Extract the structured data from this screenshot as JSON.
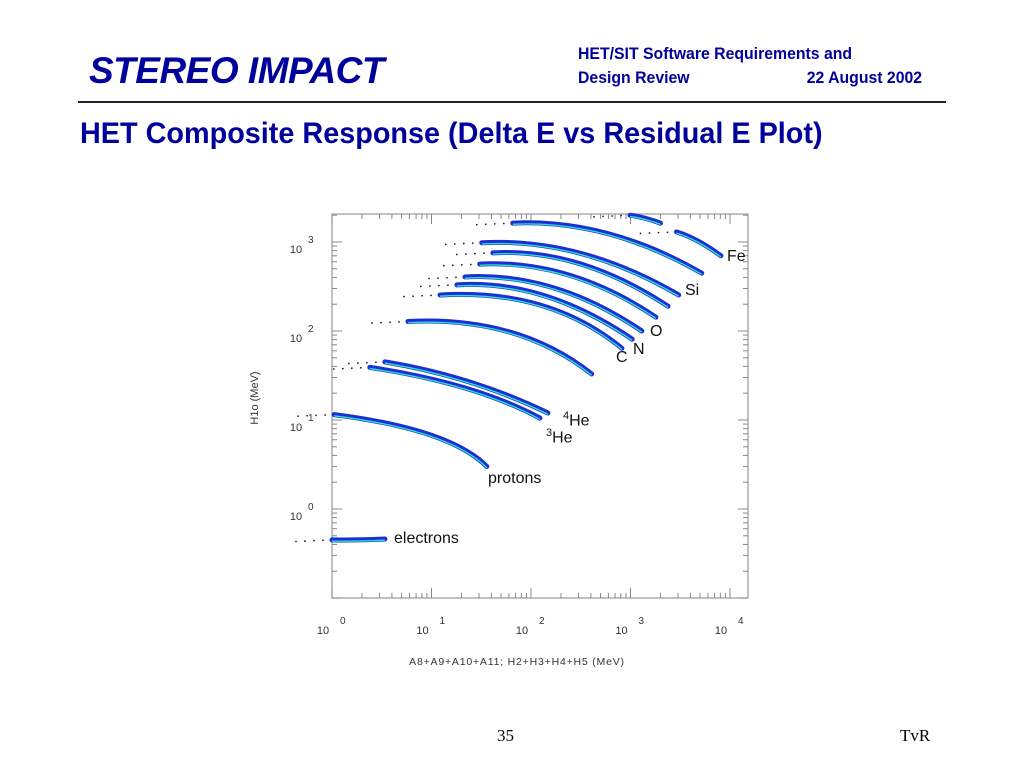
{
  "header": {
    "brand": "STEREO IMPACT",
    "line1": "HET/SIT Software Requirements and",
    "line2_left": "Design Review",
    "line2_right": "22 August 2002"
  },
  "title": "HET Composite Response (Delta E vs Residual E Plot)",
  "footer": {
    "page": "35",
    "author": "TvR"
  },
  "colors": {
    "navy": "#00009c",
    "track_outer": "#1a2fd6",
    "track_inner": "#2fe0c8"
  },
  "chart_data": {
    "type": "scatter",
    "title": "",
    "xlabel": "A8+A9+A10+A11; H2+H3+H4+H5 (MeV)",
    "ylabel": "H1o (MeV)",
    "xscale": "log",
    "yscale": "log",
    "xlim": [
      1,
      15000
    ],
    "ylim": [
      0.1,
      2500
    ],
    "x_ticks": [
      {
        "base": "10",
        "exp": "0"
      },
      {
        "base": "10",
        "exp": "1"
      },
      {
        "base": "10",
        "exp": "2"
      },
      {
        "base": "10",
        "exp": "3"
      },
      {
        "base": "10",
        "exp": "4"
      }
    ],
    "y_ticks": [
      {
        "base": "10",
        "exp": "0"
      },
      {
        "base": "10",
        "exp": "1"
      },
      {
        "base": "10",
        "exp": "2"
      },
      {
        "base": "10",
        "exp": "3"
      }
    ],
    "series": [
      {
        "name": "electrons",
        "label": "electrons",
        "points": [
          [
            1,
            0.45
          ],
          [
            1.8,
            0.45
          ],
          [
            3.4,
            0.46
          ]
        ]
      },
      {
        "name": "protons",
        "label": "protons",
        "points": [
          [
            1.05,
            11.5
          ],
          [
            9.7,
            6.8
          ],
          [
            36,
            3.0
          ]
        ]
      },
      {
        "name": "3He",
        "label_sup": "3",
        "label": "He",
        "points": [
          [
            2.4,
            39
          ],
          [
            21.7,
            22.9
          ],
          [
            123,
            10.5
          ]
        ]
      },
      {
        "name": "4He",
        "label_sup": "4",
        "label": "He",
        "points": [
          [
            3.4,
            45
          ],
          [
            24,
            26.8
          ],
          [
            148,
            12
          ]
        ]
      },
      {
        "name": "unlabeled-1",
        "points": [
          [
            5.8,
            128
          ],
          [
            60,
            98
          ],
          [
            407,
            32.9
          ]
        ]
      },
      {
        "name": "C",
        "label": "C",
        "points": [
          [
            12.2,
            254
          ],
          [
            123,
            196
          ],
          [
            820,
            64
          ]
        ]
      },
      {
        "name": "N",
        "label": "N",
        "points": [
          [
            18,
            330
          ],
          [
            135,
            250
          ],
          [
            1040,
            81
          ]
        ]
      },
      {
        "name": "O",
        "label": "O",
        "points": [
          [
            21.7,
            405
          ],
          [
            170,
            305
          ],
          [
            1300,
            100
          ]
        ]
      },
      {
        "name": "unlabeled-2",
        "points": [
          [
            30.6,
            565
          ],
          [
            240,
            425
          ],
          [
            1800,
            143
          ]
        ]
      },
      {
        "name": "unlabeled-3",
        "points": [
          [
            41.4,
            755
          ],
          [
            310,
            570
          ],
          [
            2380,
            190
          ]
        ]
      },
      {
        "name": "Si",
        "label": "Si",
        "points": [
          [
            32,
            980
          ],
          [
            310,
            750
          ],
          [
            3050,
            254
          ]
        ]
      },
      {
        "name": "unlabeled-4",
        "points": [
          [
            65.6,
            1630
          ],
          [
            580,
            1250
          ],
          [
            5200,
            447
          ]
        ]
      },
      {
        "name": "Fe",
        "label": "Fe",
        "points": [
          [
            2900,
            1300
          ],
          [
            4800,
            1020
          ],
          [
            8100,
            700
          ]
        ]
      },
      {
        "name": "unlabeled-5",
        "points": [
          [
            990,
            2000
          ],
          [
            1400,
            1850
          ],
          [
            2000,
            1630
          ]
        ]
      }
    ],
    "grid": false
  }
}
